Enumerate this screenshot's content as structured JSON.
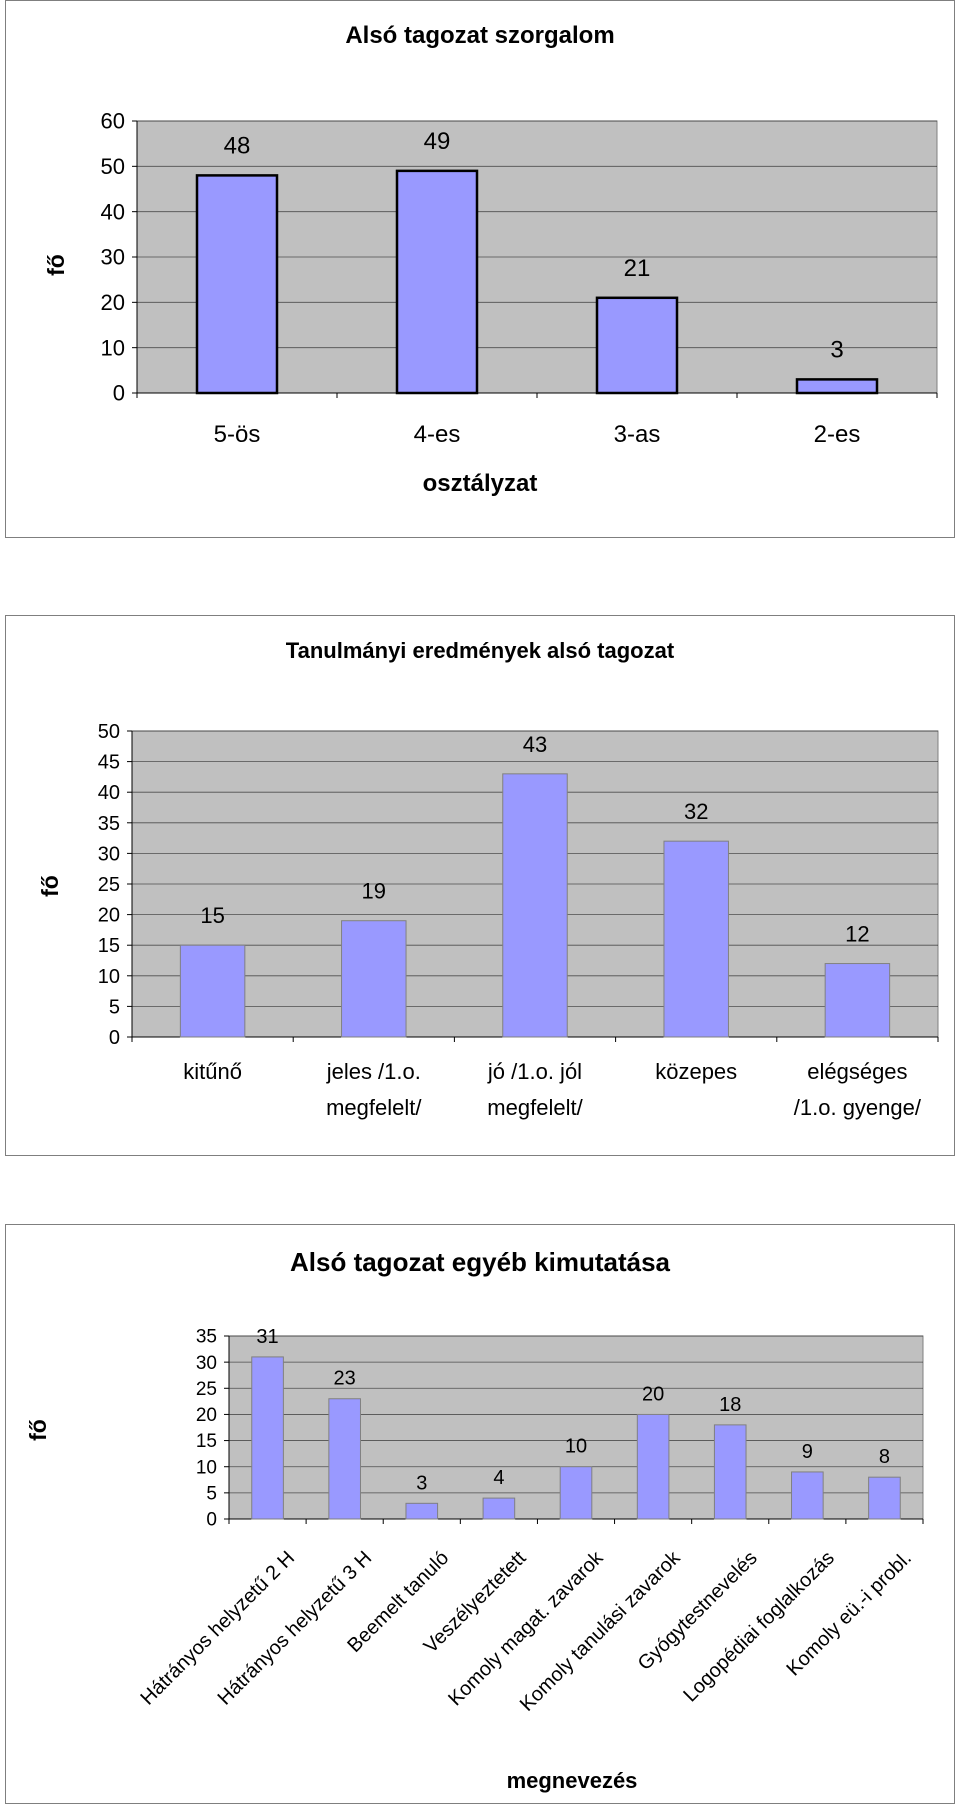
{
  "chart_data": [
    {
      "type": "bar",
      "title": "Alsó tagozat szorgalom",
      "xlabel": "osztályzat",
      "ylabel": "fő",
      "categories": [
        "5-ös",
        "4-es",
        "3-as",
        "2-es"
      ],
      "values": [
        48,
        49,
        21,
        3
      ],
      "ylim": [
        0,
        60
      ],
      "yticks": [
        "0",
        "10",
        "20",
        "30",
        "40",
        "50",
        "60"
      ],
      "grid": true,
      "colors": {
        "bar": "#9999ff",
        "plot_bg": "#c0c0c0"
      }
    },
    {
      "type": "bar",
      "title": "Tanulmányi eredmények alsó tagozat",
      "xlabel": "",
      "ylabel": "fő",
      "categories": [
        "kitűnő",
        "jeles /1.o. megfelelt/",
        "jó /1.o. jól megfelelt/",
        "közepes",
        "elégséges /1.o. gyenge/"
      ],
      "category_lines": [
        [
          "kitűnő"
        ],
        [
          "jeles /1.o.",
          "megfelelt/"
        ],
        [
          "jó /1.o. jól",
          "megfelelt/"
        ],
        [
          "közepes"
        ],
        [
          "elégséges",
          "/1.o. gyenge/"
        ]
      ],
      "values": [
        15,
        19,
        43,
        32,
        12
      ],
      "ylim": [
        0,
        50
      ],
      "yticks": [
        "0",
        "5",
        "10",
        "15",
        "20",
        "25",
        "30",
        "35",
        "40",
        "45",
        "50"
      ],
      "grid": true,
      "colors": {
        "bar": "#9999ff",
        "plot_bg": "#c0c0c0"
      }
    },
    {
      "type": "bar",
      "title": "Alsó tagozat egyéb kimutatása",
      "xlabel": "megnevezés",
      "ylabel": "fő",
      "categories": [
        "Hátrányos helyzetű 2 H",
        "Hátrányos helyzetű 3 H",
        "Beemelt tanuló",
        "Veszélyeztetett",
        "Komoly magat. zavarok",
        "Komoly tanulási zavarok",
        "Gyógytestnevelés",
        "Logopédiai foglalkozás",
        "Komoly eü.-i probl."
      ],
      "values": [
        31,
        23,
        3,
        4,
        10,
        20,
        18,
        9,
        8
      ],
      "ylim": [
        0,
        35
      ],
      "yticks": [
        "0",
        "5",
        "10",
        "15",
        "20",
        "25",
        "30",
        "35"
      ],
      "grid": true,
      "colors": {
        "bar": "#9999ff",
        "plot_bg": "#c0c0c0"
      }
    }
  ]
}
